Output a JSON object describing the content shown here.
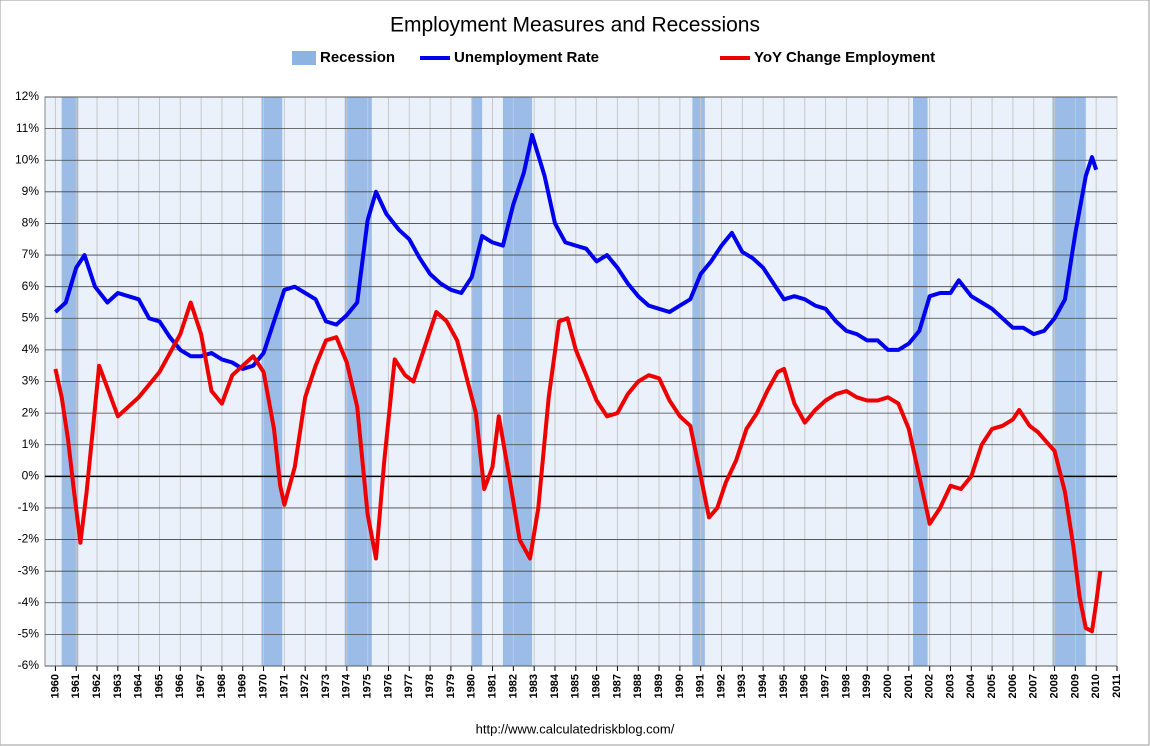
{
  "chart_data": {
    "type": "line",
    "title": "Employment Measures and Recessions",
    "source": "http://www.calculatedriskblog.com/",
    "recessions": {
      "name": "Recession",
      "color": "#8db3e2",
      "periods": [
        [
          1960.3,
          1961.1
        ],
        [
          1969.9,
          1970.9
        ],
        [
          1973.9,
          1975.2
        ],
        [
          1980.0,
          1980.5
        ],
        [
          1981.5,
          1982.9
        ],
        [
          1990.6,
          1991.2
        ],
        [
          2001.2,
          2001.9
        ],
        [
          2007.9,
          2009.5
        ]
      ]
    },
    "series": [
      {
        "name": "Unemployment Rate",
        "color": "#0000ee",
        "x": [
          1960.0,
          1960.5,
          1961.0,
          1961.4,
          1961.9,
          1962.5,
          1963.0,
          1963.5,
          1964.0,
          1964.5,
          1965.0,
          1965.5,
          1966.0,
          1966.5,
          1967.0,
          1967.5,
          1968.0,
          1968.5,
          1969.0,
          1969.5,
          1970.0,
          1970.5,
          1971.0,
          1971.5,
          1972.0,
          1972.5,
          1973.0,
          1973.5,
          1974.0,
          1974.5,
          1975.0,
          1975.4,
          1975.9,
          1976.5,
          1977.0,
          1977.5,
          1978.0,
          1978.5,
          1979.0,
          1979.5,
          1980.0,
          1980.5,
          1981.0,
          1981.5,
          1982.0,
          1982.5,
          1982.9,
          1983.5,
          1984.0,
          1984.5,
          1985.0,
          1985.5,
          1986.0,
          1986.5,
          1987.0,
          1987.5,
          1988.0,
          1988.5,
          1989.0,
          1989.5,
          1990.0,
          1990.5,
          1991.0,
          1991.5,
          1992.0,
          1992.5,
          1993.0,
          1993.5,
          1994.0,
          1994.5,
          1995.0,
          1995.5,
          1996.0,
          1996.5,
          1997.0,
          1997.5,
          1998.0,
          1998.5,
          1999.0,
          1999.5,
          2000.0,
          2000.5,
          2001.0,
          2001.5,
          2002.0,
          2002.5,
          2003.0,
          2003.4,
          2004.0,
          2004.5,
          2005.0,
          2005.5,
          2006.0,
          2006.5,
          2007.0,
          2007.5,
          2008.0,
          2008.5,
          2009.0,
          2009.5,
          2009.8,
          2010.0
        ],
        "values": [
          5.2,
          5.5,
          6.6,
          7.0,
          6.0,
          5.5,
          5.8,
          5.7,
          5.6,
          5.0,
          4.9,
          4.4,
          4.0,
          3.8,
          3.8,
          3.9,
          3.7,
          3.6,
          3.4,
          3.5,
          3.9,
          4.9,
          5.9,
          6.0,
          5.8,
          5.6,
          4.9,
          4.8,
          5.1,
          5.5,
          8.1,
          9.0,
          8.3,
          7.8,
          7.5,
          6.9,
          6.4,
          6.1,
          5.9,
          5.8,
          6.3,
          7.6,
          7.4,
          7.3,
          8.6,
          9.6,
          10.8,
          9.5,
          8.0,
          7.4,
          7.3,
          7.2,
          6.8,
          7.0,
          6.6,
          6.1,
          5.7,
          5.4,
          5.3,
          5.2,
          5.4,
          5.6,
          6.4,
          6.8,
          7.3,
          7.7,
          7.1,
          6.9,
          6.6,
          6.1,
          5.6,
          5.7,
          5.6,
          5.4,
          5.3,
          4.9,
          4.6,
          4.5,
          4.3,
          4.3,
          4.0,
          4.0,
          4.2,
          4.6,
          5.7,
          5.8,
          5.8,
          6.2,
          5.7,
          5.5,
          5.3,
          5.0,
          4.7,
          4.7,
          4.5,
          4.6,
          5.0,
          5.6,
          7.7,
          9.5,
          10.1,
          9.7
        ]
      },
      {
        "name": "YoY Change Employment",
        "color": "#ee0000",
        "x": [
          1960.0,
          1960.3,
          1960.6,
          1960.9,
          1961.2,
          1961.5,
          1961.8,
          1962.1,
          1962.5,
          1963.0,
          1963.5,
          1964.0,
          1964.5,
          1965.0,
          1965.5,
          1966.0,
          1966.5,
          1967.0,
          1967.5,
          1968.0,
          1968.5,
          1969.0,
          1969.5,
          1970.0,
          1970.5,
          1970.8,
          1971.0,
          1971.5,
          1972.0,
          1972.5,
          1973.0,
          1973.5,
          1974.0,
          1974.5,
          1975.0,
          1975.4,
          1975.8,
          1976.3,
          1976.8,
          1977.2,
          1977.7,
          1978.3,
          1978.8,
          1979.3,
          1979.8,
          1980.2,
          1980.6,
          1981.0,
          1981.3,
          1981.8,
          1982.3,
          1982.8,
          1983.2,
          1983.7,
          1984.2,
          1984.6,
          1985.0,
          1985.5,
          1986.0,
          1986.5,
          1987.0,
          1987.5,
          1988.0,
          1988.5,
          1989.0,
          1989.5,
          1990.0,
          1990.5,
          1991.0,
          1991.4,
          1991.8,
          1992.2,
          1992.7,
          1993.2,
          1993.7,
          1994.2,
          1994.7,
          1995.0,
          1995.5,
          1996.0,
          1996.5,
          1997.0,
          1997.5,
          1998.0,
          1998.5,
          1999.0,
          1999.5,
          2000.0,
          2000.5,
          2001.0,
          2001.5,
          2002.0,
          2002.5,
          2003.0,
          2003.5,
          2004.0,
          2004.5,
          2005.0,
          2005.5,
          2006.0,
          2006.3,
          2006.8,
          2007.2,
          2007.6,
          2008.0,
          2008.5,
          2008.9,
          2009.2,
          2009.5,
          2009.8,
          2010.0,
          2010.2
        ],
        "values": [
          3.4,
          2.5,
          1.2,
          -0.5,
          -2.1,
          -0.5,
          1.5,
          3.5,
          2.8,
          1.9,
          2.2,
          2.5,
          2.9,
          3.3,
          3.9,
          4.5,
          5.5,
          4.5,
          2.7,
          2.3,
          3.2,
          3.5,
          3.8,
          3.3,
          1.5,
          -0.3,
          -0.9,
          0.3,
          2.5,
          3.5,
          4.3,
          4.4,
          3.6,
          2.2,
          -1.2,
          -2.6,
          0.5,
          3.7,
          3.2,
          3.0,
          4.0,
          5.2,
          4.9,
          4.3,
          3.0,
          2.0,
          -0.4,
          0.3,
          1.9,
          0.0,
          -2.0,
          -2.6,
          -1.0,
          2.5,
          4.9,
          5.0,
          4.0,
          3.2,
          2.4,
          1.9,
          2.0,
          2.6,
          3.0,
          3.2,
          3.1,
          2.4,
          1.9,
          1.6,
          0.0,
          -1.3,
          -1.0,
          -0.2,
          0.5,
          1.5,
          2.0,
          2.7,
          3.3,
          3.4,
          2.3,
          1.7,
          2.1,
          2.4,
          2.6,
          2.7,
          2.5,
          2.4,
          2.4,
          2.5,
          2.3,
          1.5,
          0.0,
          -1.5,
          -1.0,
          -0.3,
          -0.4,
          0.0,
          1.0,
          1.5,
          1.6,
          1.8,
          2.1,
          1.6,
          1.4,
          1.1,
          0.8,
          -0.5,
          -2.2,
          -3.8,
          -4.8,
          -4.9,
          -4.0,
          -3.0
        ]
      }
    ],
    "xlim": [
      1959.5,
      2011
    ],
    "xticks": [
      1960,
      1961,
      1962,
      1963,
      1964,
      1965,
      1966,
      1967,
      1968,
      1969,
      1970,
      1971,
      1972,
      1973,
      1974,
      1975,
      1976,
      1977,
      1978,
      1979,
      1980,
      1981,
      1982,
      1983,
      1984,
      1985,
      1986,
      1987,
      1988,
      1989,
      1990,
      1991,
      1992,
      1993,
      1994,
      1995,
      1996,
      1997,
      1998,
      1999,
      2000,
      2001,
      2002,
      2003,
      2004,
      2005,
      2006,
      2007,
      2008,
      2009,
      2010,
      2011
    ],
    "ylim": [
      -6,
      12
    ],
    "yticks": [
      {
        "value": -6,
        "label": "-6%"
      },
      {
        "value": -5,
        "label": "-5%"
      },
      {
        "value": -4,
        "label": "-4%"
      },
      {
        "value": -3,
        "label": "-3%"
      },
      {
        "value": -2,
        "label": "-2%"
      },
      {
        "value": -1,
        "label": "-1%"
      },
      {
        "value": 0,
        "label": "0%"
      },
      {
        "value": 1,
        "label": "1%"
      },
      {
        "value": 2,
        "label": "2%"
      },
      {
        "value": 3,
        "label": "3%"
      },
      {
        "value": 4,
        "label": "4%"
      },
      {
        "value": 5,
        "label": "5%"
      },
      {
        "value": 6,
        "label": "6%"
      },
      {
        "value": 7,
        "label": "7%"
      },
      {
        "value": 8,
        "label": "8%"
      },
      {
        "value": 9,
        "label": "9%"
      },
      {
        "value": 10,
        "label": "10%"
      },
      {
        "value": 11,
        "label": "11%"
      },
      {
        "value": 12,
        "label": "12%"
      }
    ],
    "grid": true
  }
}
